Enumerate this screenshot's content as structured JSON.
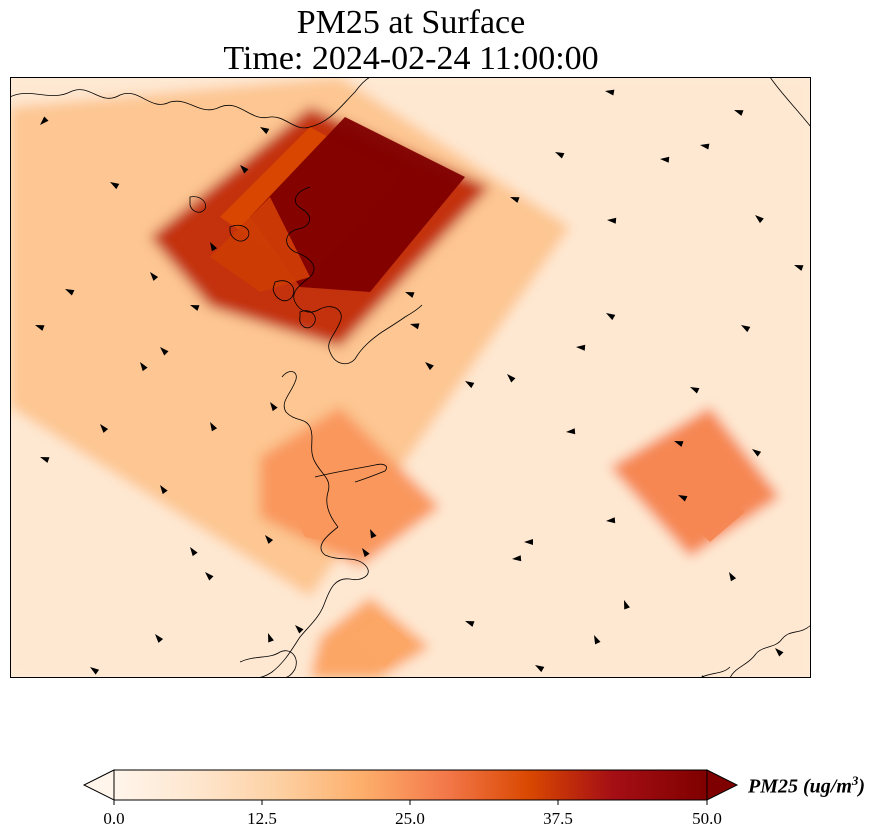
{
  "title_line1": "PM25 at Surface",
  "title_line2": "Time: 2024-02-24 11:00:00",
  "colorbar": {
    "label_main": "PM25 (ug/m",
    "label_exp": "3",
    "label_close": ")",
    "ticks": [
      "0.0",
      "12.5",
      "25.0",
      "37.5",
      "50.0"
    ],
    "vmin": 0,
    "vmax": 50,
    "colormap": [
      "#fff5eb",
      "#fee6ce",
      "#fdd0a2",
      "#fdae6b",
      "#f16913",
      "#d94801",
      "#a50f15",
      "#7f0000"
    ],
    "extend": "both"
  },
  "map_data": {
    "variable": "PM25",
    "units": "ug/m3",
    "plume_concentrations": [
      {
        "region": "north-west hotspot",
        "value": 50
      },
      {
        "region": "north-west halo",
        "value": 38
      },
      {
        "region": "west-central band",
        "value": 16
      },
      {
        "region": "central south",
        "value": 24
      },
      {
        "region": "south-east",
        "value": 26
      },
      {
        "region": "south",
        "value": 22
      },
      {
        "region": "background",
        "value": 6
      }
    ],
    "wind_vectors": "shown"
  }
}
